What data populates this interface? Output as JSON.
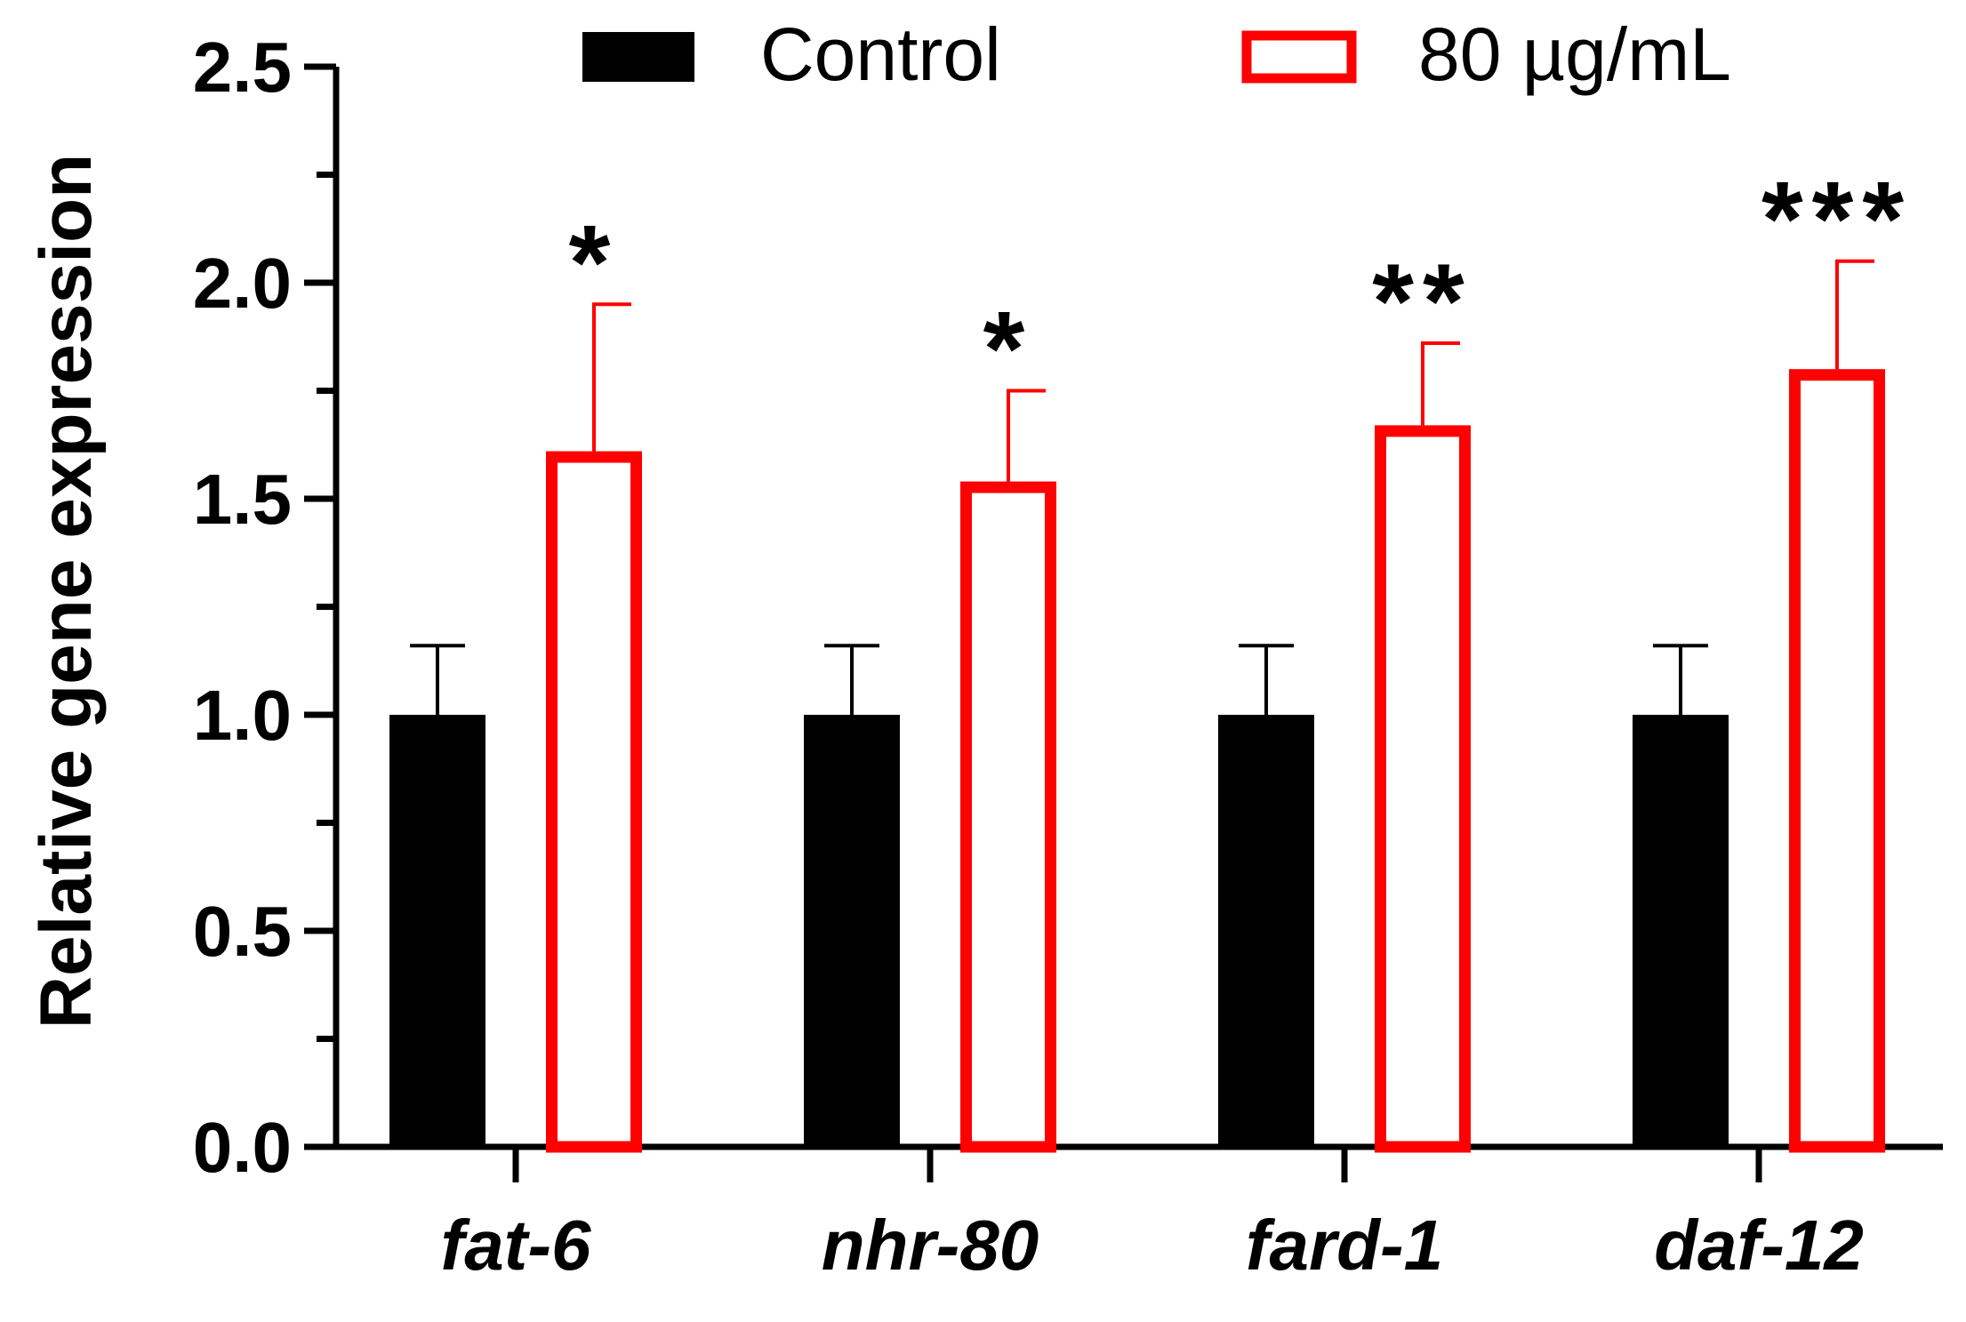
{
  "chart_data": {
    "type": "bar",
    "categories": [
      "fat-6",
      "nhr-80",
      "fard-1",
      "daf-12"
    ],
    "series": [
      {
        "name": "Control",
        "style": "filled",
        "color": "#000000",
        "values": [
          1.0,
          1.0,
          1.0,
          1.0
        ],
        "errors": [
          0.16,
          0.16,
          0.16,
          0.16
        ]
      },
      {
        "name": "80 µg/mL",
        "style": "outline",
        "color": "#ff0000",
        "values": [
          1.61,
          1.54,
          1.67,
          1.8
        ],
        "errors": [
          0.34,
          0.21,
          0.19,
          0.25
        ]
      }
    ],
    "significance": [
      "*",
      "*",
      "**",
      "***"
    ],
    "title": "",
    "xlabel": "",
    "ylabel": "Relative gene expression",
    "ylim": [
      0,
      2.5
    ],
    "yticks": [
      "0.0",
      "0.5",
      "1.0",
      "1.5",
      "2.0",
      "2.5"
    ],
    "legend_position": "top",
    "grid": false
  }
}
